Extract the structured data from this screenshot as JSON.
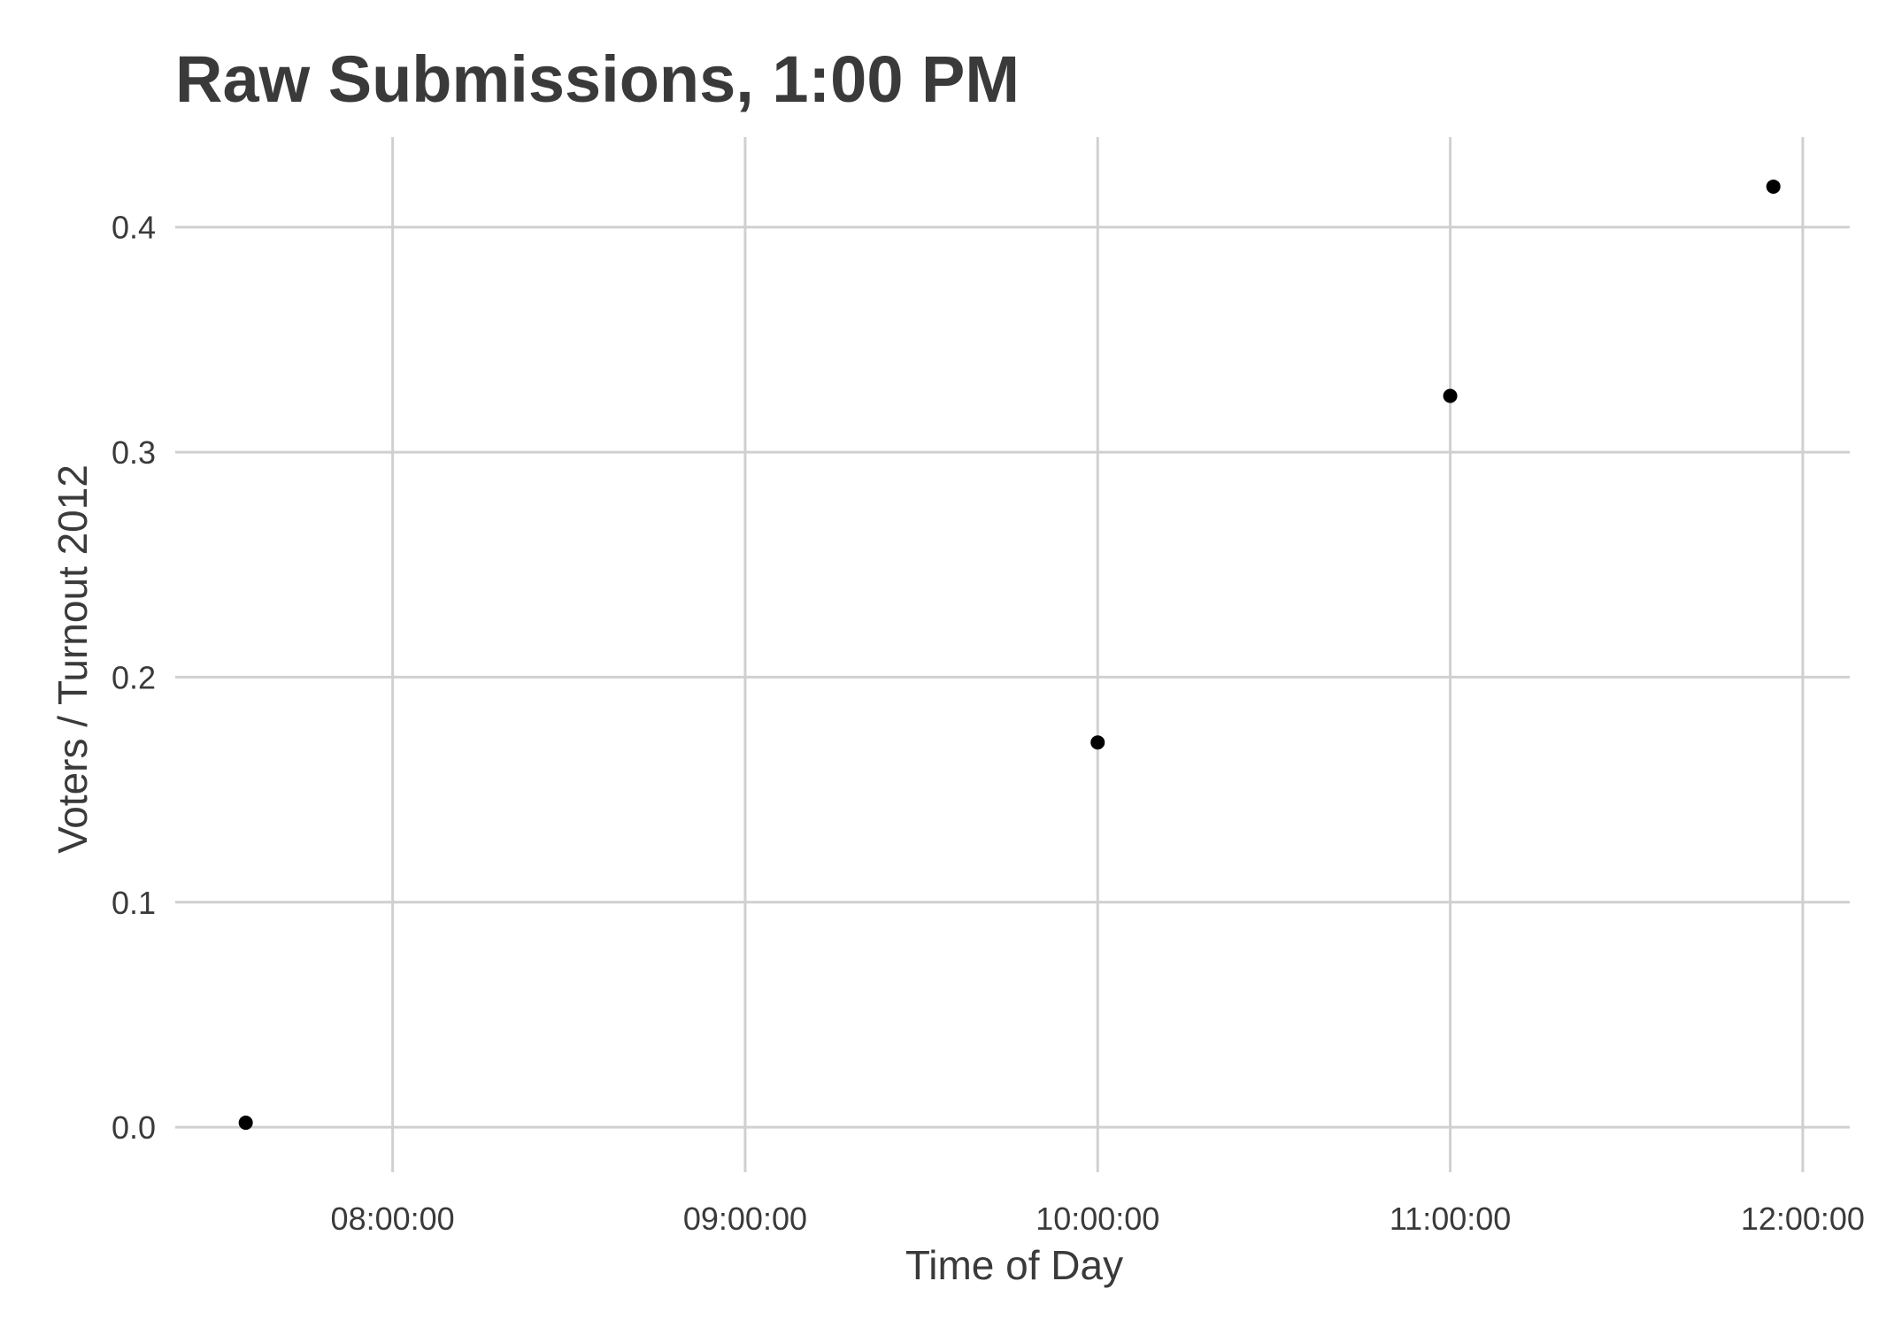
{
  "chart_data": {
    "type": "scatter",
    "title": "Raw Submissions, 1:00 PM",
    "xlabel": "Time of Day",
    "ylabel": "Voters / Turnout 2012",
    "x_ticks": [
      "08:00:00",
      "09:00:00",
      "10:00:00",
      "11:00:00",
      "12:00:00"
    ],
    "y_ticks": [
      "0.0",
      "0.1",
      "0.2",
      "0.3",
      "0.4"
    ],
    "xlim": [
      "07:23:00",
      "12:08:00"
    ],
    "ylim": [
      -0.02,
      0.44
    ],
    "grid": true,
    "point_color": "#000000",
    "points": [
      {
        "x": "07:35:00",
        "y": 0.002
      },
      {
        "x": "10:00:00",
        "y": 0.171
      },
      {
        "x": "11:00:00",
        "y": 0.325
      },
      {
        "x": "11:55:00",
        "y": 0.418
      }
    ]
  }
}
